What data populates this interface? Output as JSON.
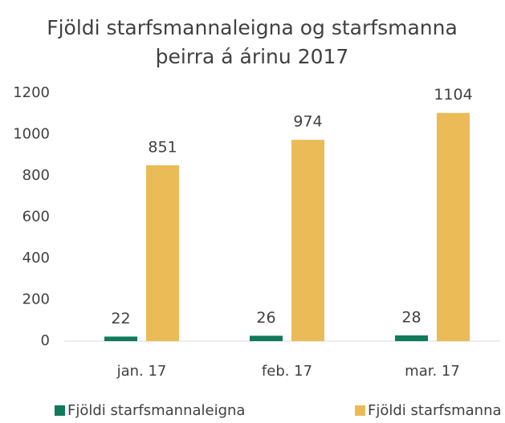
{
  "chart_data": {
    "type": "bar",
    "title": [
      "Fjöldi starfsmannaleigna og starfsmanna",
      "þeirra á árinu 2017"
    ],
    "categories": [
      "jan. 17",
      "feb. 17",
      "mar. 17"
    ],
    "series": [
      {
        "name": "Fjöldi starfsmannaleigna",
        "color": "#0f7a5c",
        "values": [
          22,
          26,
          28
        ]
      },
      {
        "name": "Fjöldi starfsmanna",
        "color": "#ebbb58",
        "values": [
          851,
          974,
          1104
        ]
      }
    ],
    "ylim": [
      0,
      1200
    ],
    "yticks": [
      0,
      200,
      400,
      600,
      800,
      1000,
      1200
    ],
    "grid": false,
    "legend": "bottom"
  }
}
